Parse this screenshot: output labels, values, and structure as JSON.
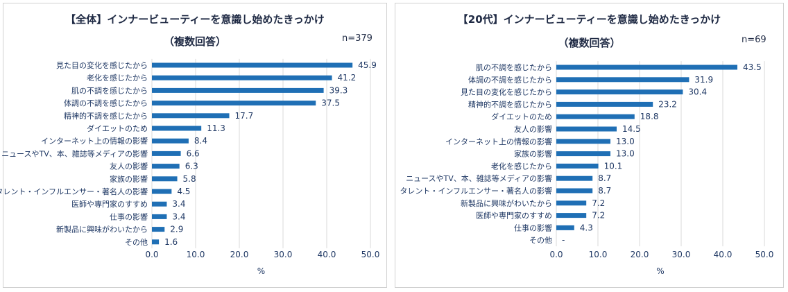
{
  "chart_data": [
    {
      "type": "bar",
      "orientation": "horizontal",
      "title": "【全体】インナービューティーを意識し始めたきっかけ",
      "subtitle": "（複数回答）",
      "n_label": "n=379",
      "xlabel": "%",
      "xlim": [
        0,
        50
      ],
      "xticks": [
        "0.0",
        "10.0",
        "20.0",
        "30.0",
        "40.0",
        "50.0"
      ],
      "categories": [
        "見た目の変化を感じたから",
        "老化を感じたから",
        "肌の不調を感じたから",
        "体調の不調を感じたから",
        "精神的不調を感じたから",
        "ダイエットのため",
        "インターネット上の情報の影響",
        "ニュースやTV、本、雑誌等メディアの影響",
        "友人の影響",
        "家族の影響",
        "タレント・インフルエンサー・著名人の影響",
        "医師や専門家のすすめ",
        "仕事の影響",
        "新製品に興味がわいたから",
        "その他"
      ],
      "values": [
        45.9,
        41.2,
        39.3,
        37.5,
        17.7,
        11.3,
        8.4,
        6.6,
        6.3,
        5.8,
        4.5,
        3.4,
        3.4,
        2.9,
        1.6
      ],
      "labels": [
        "45.9",
        "41.2",
        "39.3",
        "37.5",
        "17.7",
        "11.3",
        "8.4",
        "6.6",
        "6.3",
        "5.8",
        "4.5",
        "3.4",
        "3.4",
        "2.9",
        "1.6"
      ],
      "bar_color": "#1f6fb5",
      "grid": true
    },
    {
      "type": "bar",
      "orientation": "horizontal",
      "title": "【20代】インナービューティーを意識し始めたきっかけ",
      "subtitle": "（複数回答）",
      "n_label": "n=69",
      "xlabel": "%",
      "xlim": [
        0,
        50
      ],
      "xticks": [
        "0.0",
        "10.0",
        "20.0",
        "30.0",
        "40.0",
        "50.0"
      ],
      "categories": [
        "肌の不調を感じたから",
        "体調の不調を感じたから",
        "見た目の変化を感じたから",
        "精神的不調を感じたから",
        "ダイエットのため",
        "友人の影響",
        "インターネット上の情報の影響",
        "家族の影響",
        "老化を感じたから",
        "ニュースやTV、本、雑誌等メディアの影響",
        "タレント・インフルエンサー・著名人の影響",
        "新製品に興味がわいたから",
        "医師や専門家のすすめ",
        "仕事の影響",
        "その他"
      ],
      "values": [
        43.5,
        31.9,
        30.4,
        23.2,
        18.8,
        14.5,
        13.0,
        13.0,
        10.1,
        8.7,
        8.7,
        7.2,
        7.2,
        4.3,
        0
      ],
      "labels": [
        "43.5",
        "31.9",
        "30.4",
        "23.2",
        "18.8",
        "14.5",
        "13.0",
        "13.0",
        "10.1",
        "8.7",
        "8.7",
        "7.2",
        "7.2",
        "4.3",
        "-"
      ],
      "bar_color": "#1f6fb5",
      "grid": true
    }
  ]
}
